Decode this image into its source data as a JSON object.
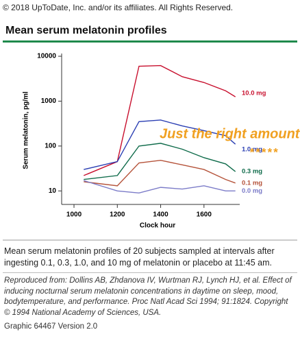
{
  "copyright": "© 2018 UpToDate, Inc. and/or its affiliates. All Rights Reserved.",
  "heading": "Mean serum melatonin profiles",
  "chart_data": {
    "type": "line",
    "x_label": "Clock hour",
    "y_label": "Serum melatonin, pg/ml",
    "x": [
      1045,
      1200,
      1300,
      1400,
      1500,
      1600,
      1700,
      1745
    ],
    "series": [
      {
        "name": "10.0 mg",
        "color": "#c8102e",
        "values": [
          22,
          45,
          6000,
          6200,
          3500,
          2600,
          1700,
          1250
        ]
      },
      {
        "name": "1.0 mg",
        "color": "#2b3fb3",
        "values": [
          30,
          45,
          350,
          380,
          280,
          220,
          170,
          110
        ]
      },
      {
        "name": "0.3 mg",
        "color": "#0e6b4a",
        "values": [
          18,
          22,
          100,
          115,
          85,
          55,
          40,
          27
        ]
      },
      {
        "name": "0.1 mg",
        "color": "#b5533a",
        "values": [
          16,
          13,
          42,
          48,
          38,
          30,
          18,
          15
        ]
      },
      {
        "name": "0.0 mg",
        "color": "#7b7bc8",
        "values": [
          17,
          10,
          9,
          12,
          11,
          13,
          10,
          10
        ]
      }
    ],
    "log_y": true,
    "xlim": [
      943,
      1765
    ],
    "ylim": [
      5,
      10000
    ],
    "xticks": [
      1000,
      1200,
      1400,
      1600
    ],
    "yticks": [
      10,
      100,
      1000,
      10000
    ],
    "annotations": [
      "Just the right amount.",
      "*****"
    ]
  },
  "caption": "Mean serum melatonin profiles of 20 subjects sampled at intervals after ingesting 0.1, 0.3, 1.0, and 10 mg of melatonin or placebo at 11:45 am.",
  "reference": "Reproduced from: Dollins AB, Zhdanova IV, Wurtman RJ, Lynch HJ, et al. Effect of inducing nocturnal serum melatonin concentrations in daytime on sleep, mood, bodytemperature, and performance. Proc Natl Acad Sci 1994; 91:1824. Copyright © 1994 National Academy of Sciences, USA.",
  "graphic_id": "Graphic 64467 Version 2.0"
}
